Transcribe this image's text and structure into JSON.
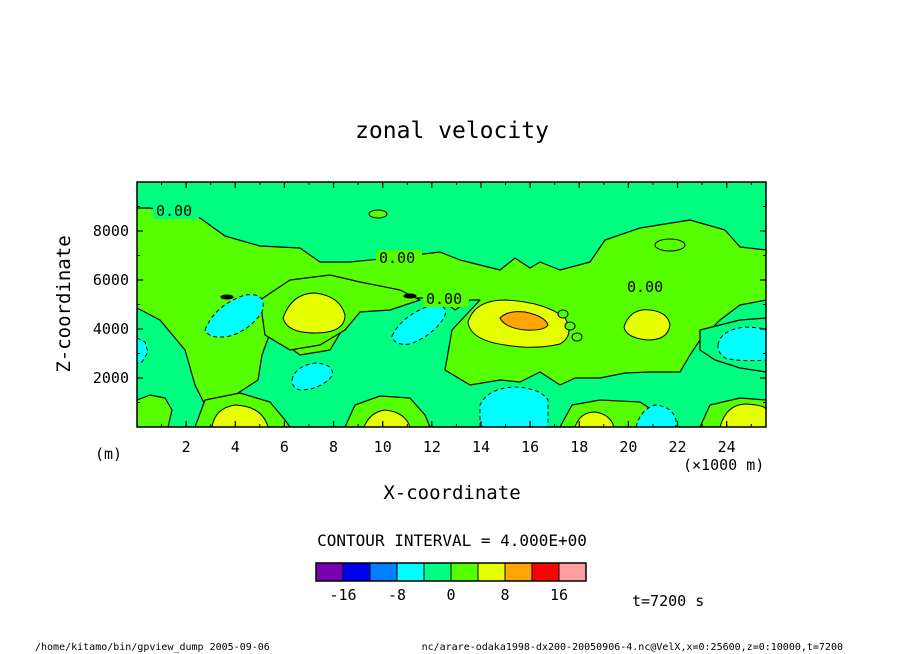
{
  "chart_data": {
    "type": "contour",
    "title": "zonal velocity",
    "xlabel": "X-coordinate",
    "ylabel": "Z-coordinate",
    "x_unit": "(×1000 m)",
    "y_unit": "(m)",
    "xlim": [
      0,
      25.6
    ],
    "ylim": [
      0,
      10000
    ],
    "x_ticks": [
      "2",
      "4",
      "6",
      "8",
      "10",
      "12",
      "14",
      "16",
      "18",
      "20",
      "22",
      "24"
    ],
    "y_ticks": [
      "2000",
      "4000",
      "6000",
      "8000"
    ],
    "contour_interval_text": "CONTOUR INTERVAL = 4.000E+00",
    "contour_labels": [
      "0.00",
      "0.00",
      "0.00",
      "0.00"
    ],
    "colorbar": {
      "labels": [
        "-16",
        "-8",
        "0",
        "8",
        "16"
      ],
      "label_values": [
        -16,
        -8,
        0,
        8,
        16
      ],
      "levels": [
        -20,
        -16,
        -12,
        -8,
        -4,
        0,
        4,
        8,
        12,
        16,
        20
      ],
      "colors": [
        "#7a00b4",
        "#0000f0",
        "#0080ff",
        "#00ffff",
        "#00ff80",
        "#55ff00",
        "#e6ff00",
        "#ffa500",
        "#ff0000",
        "#ff9f9f"
      ]
    },
    "features": [
      {
        "type": "background",
        "value_range": "0 to 4",
        "color": "#55ff00"
      },
      {
        "type": "region",
        "value_range": "-4 to 0",
        "color": "#00ff80"
      },
      {
        "type": "max",
        "x": 15.8,
        "z": 4200,
        "value_range": "12 to 16",
        "color": "#ffa500"
      },
      {
        "type": "max",
        "x": 7.0,
        "z": 4600,
        "value_range": "8 to 12",
        "color": "#e6ff00"
      },
      {
        "type": "max",
        "x": 20.7,
        "z": 4000,
        "value_range": "8 to 12",
        "color": "#e6ff00"
      },
      {
        "type": "min",
        "x": 14.8,
        "z": 800,
        "value_range": "-12 to -8",
        "color": "#00ffff"
      },
      {
        "type": "min",
        "x": 4.0,
        "z": 4500,
        "value_range": "-12 to -8",
        "color": "#00ffff"
      },
      {
        "type": "min",
        "x": 11.3,
        "z": 4100,
        "value_range": "-12 to -8",
        "color": "#00ffff"
      },
      {
        "type": "min",
        "x": 24.2,
        "z": 3500,
        "value_range": "-12 to -8",
        "color": "#00ffff"
      }
    ]
  },
  "time_label": "t=7200 s",
  "footer": {
    "left": "/home/kitamo/bin/gpview_dump  2005-09-06",
    "right": "nc/arare-odaka1998-dx200-20050906-4.nc@VelX,x=0:25600,z=0:10000,t=7200"
  }
}
